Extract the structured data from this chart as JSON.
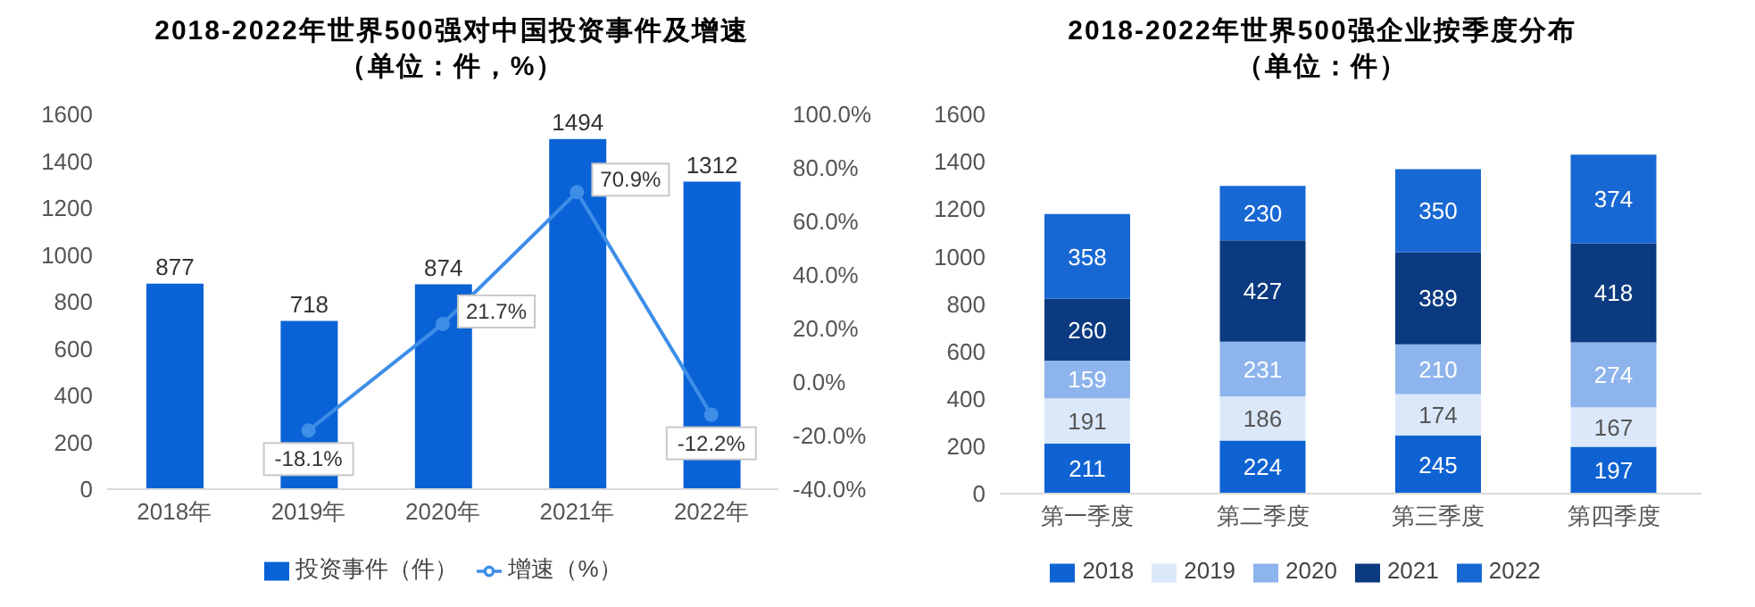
{
  "chart_data": [
    {
      "type": "bar",
      "title": "2018-2022年世界500强对中国投资事件及增速",
      "subtitle": "（单位：件，%）",
      "categories": [
        "2018年",
        "2019年",
        "2020年",
        "2021年",
        "2022年"
      ],
      "series": [
        {
          "name": "投资事件（件）",
          "color": "#0a63d6",
          "values": [
            877,
            718,
            874,
            1494,
            1312
          ],
          "value_labels": [
            "877",
            "718",
            "874",
            "1494",
            "1312"
          ]
        },
        {
          "name": "增速（%）",
          "type": "line",
          "axis": "y2",
          "color": "#3e8ee8",
          "marker": "circle",
          "values": [
            null,
            -18.1,
            21.7,
            70.9,
            -12.2
          ],
          "value_labels": [
            null,
            "-18.1%",
            "21.7%",
            "70.9%",
            "-12.2%"
          ]
        }
      ],
      "ylim": [
        0,
        1600
      ],
      "yticks": [
        0,
        200,
        400,
        600,
        800,
        1000,
        1200,
        1400,
        1600
      ],
      "y2lim": [
        -40,
        100
      ],
      "y2ticks": [
        {
          "value": -40,
          "label": "-40.0%"
        },
        {
          "value": -20,
          "label": "-20.0%"
        },
        {
          "value": 0,
          "label": "0.0%"
        },
        {
          "value": 20,
          "label": "20.0%"
        },
        {
          "value": 40,
          "label": "40.0%"
        },
        {
          "value": 60,
          "label": "60.0%"
        },
        {
          "value": 80,
          "label": "80.0%"
        },
        {
          "value": 100,
          "label": "100.0%"
        }
      ],
      "grid": false,
      "legend": "bottom"
    },
    {
      "type": "bar",
      "title": "2018-2022年世界500强企业按季度分布",
      "subtitle": "（单位：件）",
      "categories": [
        "第一季度",
        "第二季度",
        "第三季度",
        "第四季度"
      ],
      "stacked": true,
      "data_labels": true,
      "series": [
        {
          "name": "2018",
          "color": "#0f62d2",
          "values": [
            211,
            224,
            245,
            197
          ]
        },
        {
          "name": "2019",
          "color": "#dbe8fa",
          "values": [
            191,
            186,
            174,
            167
          ]
        },
        {
          "name": "2020",
          "color": "#8db4ec",
          "values": [
            159,
            231,
            210,
            274
          ]
        },
        {
          "name": "2021",
          "color": "#0b3a80",
          "values": [
            260,
            427,
            389,
            418
          ]
        },
        {
          "name": "2022",
          "color": "#1868d4",
          "values": [
            358,
            230,
            350,
            374
          ]
        }
      ],
      "ylim": [
        0,
        1600
      ],
      "yticks": [
        0,
        200,
        400,
        600,
        800,
        1000,
        1200,
        1400,
        1600
      ],
      "grid": false,
      "legend": "bottom"
    }
  ]
}
